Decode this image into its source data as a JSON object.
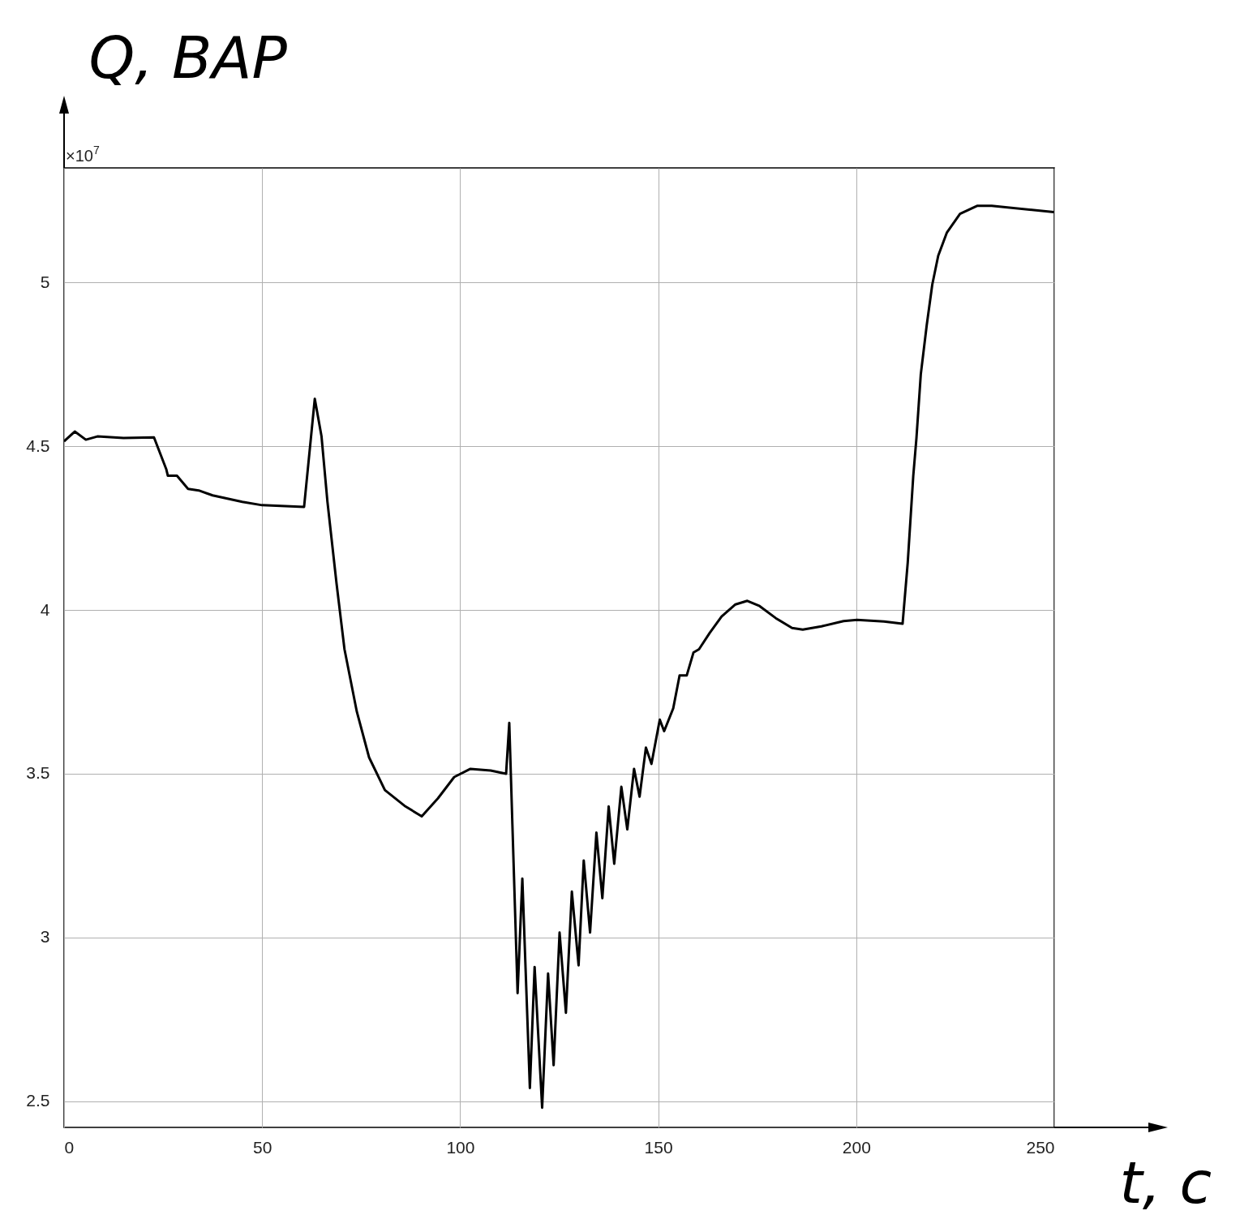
{
  "chart_data": {
    "type": "line",
    "xlabel": "t, с",
    "ylabel": "Q, ВАР",
    "annotations": [
      "×10$^{7}$"
    ],
    "xlim": [
      0,
      250
    ],
    "ylim": [
      2.42,
      5.35
    ],
    "xticks": [
      0,
      50,
      100,
      150,
      200,
      250
    ],
    "yticks": [
      2.5,
      3,
      3.5,
      4,
      4.5,
      5
    ],
    "grid": true,
    "line_style": "solid",
    "series": [
      {
        "color": "#000000",
        "x": [
          0,
          2.7,
          5.5,
          8.4,
          15,
          22.7,
          25.8,
          26.2,
          28.5,
          31.3,
          34,
          37.5,
          45,
          50,
          60.6,
          63.3,
          65,
          66.5,
          68.8,
          70.8,
          73.9,
          77,
          81,
          86.2,
          90.3,
          94.4,
          98.5,
          102.6,
          107.7,
          111.6,
          112.4,
          114.5,
          115.7,
          117.6,
          118.8,
          120.7,
          122.2,
          123.6,
          125.1,
          126.7,
          128.2,
          129.9,
          131.2,
          132.8,
          134.4,
          135.9,
          137.5,
          138.9,
          140.7,
          142.2,
          143.9,
          145.3,
          146.9,
          148.3,
          150.4,
          151.5,
          153.8,
          155.4,
          157.2,
          158.9,
          160.3,
          163,
          166,
          169.5,
          172.5,
          175.6,
          179.7,
          183.8,
          186.5,
          191.2,
          196.8,
          200.2,
          207,
          211.7,
          213,
          214.4,
          215.2,
          216.3,
          217.8,
          219.2,
          220.7,
          222.9,
          226.2,
          230.5,
          234.2,
          249.9
        ],
        "values": [
          4.515,
          4.545,
          4.52,
          4.53,
          4.525,
          4.527,
          4.43,
          4.41,
          4.41,
          4.37,
          4.365,
          4.35,
          4.33,
          4.32,
          4.315,
          4.645,
          4.53,
          4.33,
          4.08,
          3.88,
          3.69,
          3.55,
          3.45,
          3.4,
          3.37,
          3.425,
          3.49,
          3.515,
          3.51,
          3.5,
          3.655,
          2.83,
          3.18,
          2.54,
          2.91,
          2.48,
          2.89,
          2.61,
          3.015,
          2.77,
          3.14,
          2.915,
          3.235,
          3.015,
          3.32,
          3.12,
          3.4,
          3.225,
          3.46,
          3.33,
          3.515,
          3.43,
          3.58,
          3.53,
          3.665,
          3.63,
          3.7,
          3.8,
          3.8,
          3.87,
          3.88,
          3.93,
          3.98,
          4.017,
          4.028,
          4.012,
          3.975,
          3.945,
          3.94,
          3.95,
          3.966,
          3.97,
          3.965,
          3.958,
          4.145,
          4.41,
          4.525,
          4.72,
          4.87,
          4.994,
          5.082,
          5.153,
          5.21,
          5.234,
          5.234,
          5.215
        ]
      }
    ]
  }
}
